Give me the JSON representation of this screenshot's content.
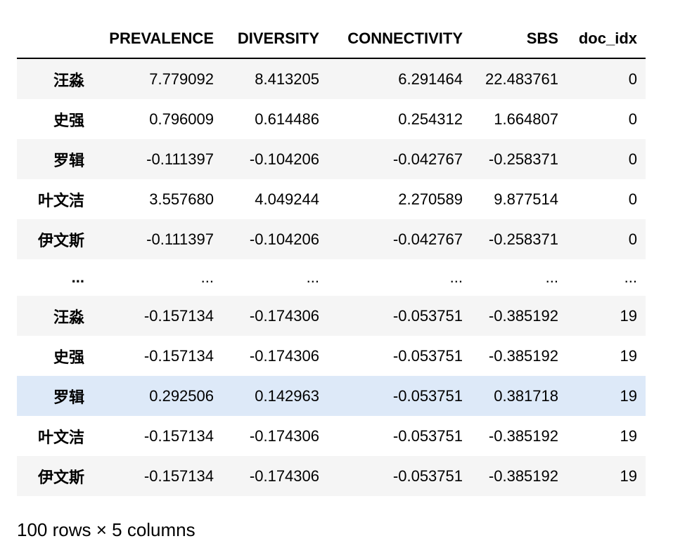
{
  "dataframe": {
    "columns": [
      "PREVALENCE",
      "DIVERSITY",
      "CONNECTIVITY",
      "SBS",
      "doc_idx"
    ],
    "rows": [
      {
        "index": "汪淼",
        "values": [
          "7.779092",
          "8.413205",
          "6.291464",
          "22.483761",
          "0"
        ]
      },
      {
        "index": "史强",
        "values": [
          "0.796009",
          "0.614486",
          "0.254312",
          "1.664807",
          "0"
        ]
      },
      {
        "index": "罗辑",
        "values": [
          "-0.111397",
          "-0.104206",
          "-0.042767",
          "-0.258371",
          "0"
        ]
      },
      {
        "index": "叶文洁",
        "values": [
          "3.557680",
          "4.049244",
          "2.270589",
          "9.877514",
          "0"
        ]
      },
      {
        "index": "伊文斯",
        "values": [
          "-0.111397",
          "-0.104206",
          "-0.042767",
          "-0.258371",
          "0"
        ]
      },
      {
        "index": "...",
        "values": [
          "...",
          "...",
          "...",
          "...",
          "..."
        ]
      },
      {
        "index": "汪淼",
        "values": [
          "-0.157134",
          "-0.174306",
          "-0.053751",
          "-0.385192",
          "19"
        ]
      },
      {
        "index": "史强",
        "values": [
          "-0.157134",
          "-0.174306",
          "-0.053751",
          "-0.385192",
          "19"
        ]
      },
      {
        "index": "罗辑",
        "values": [
          "0.292506",
          "0.142963",
          "-0.053751",
          "0.381718",
          "19"
        ]
      },
      {
        "index": "叶文洁",
        "values": [
          "-0.157134",
          "-0.174306",
          "-0.053751",
          "-0.385192",
          "19"
        ]
      },
      {
        "index": "伊文斯",
        "values": [
          "-0.157134",
          "-0.174306",
          "-0.053751",
          "-0.385192",
          "19"
        ]
      }
    ],
    "shape_caption": "100 rows × 5 columns",
    "colors": {
      "striped_row": "#f5f5f5",
      "hovered_row": "#dde9f8",
      "header_rule": "#000000"
    }
  }
}
